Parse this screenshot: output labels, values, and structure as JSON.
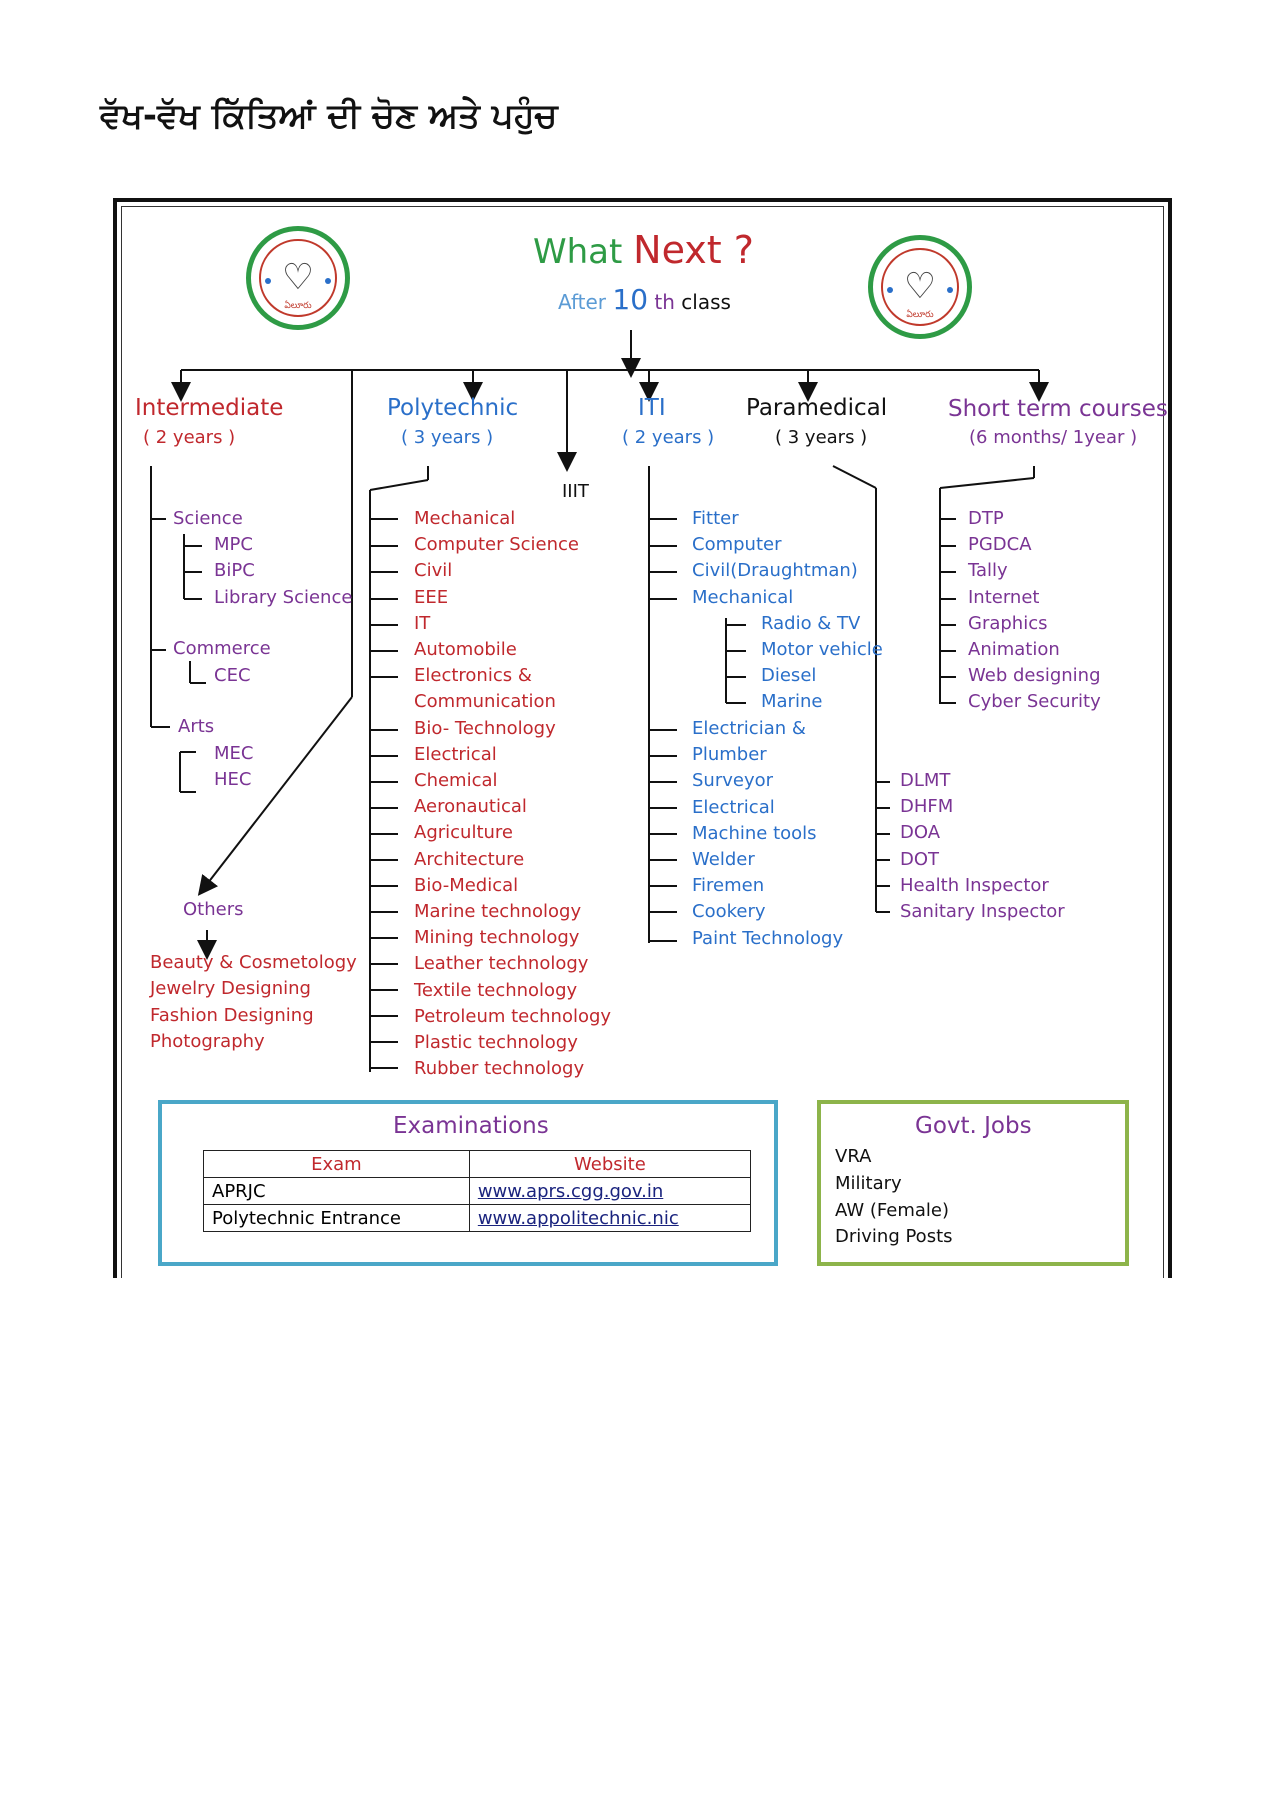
{
  "page_title": "ਵੱਖ-ਵੱਖ ਕਿੱਤਿਆਂ ਦੀ ਚੋਣ ਅਤੇ ਪਹੁੰਚ",
  "header": {
    "what": "What",
    "next": "Next ?",
    "after": "After",
    "ten": "10",
    "th": "th",
    "class": "class",
    "logo_label": "ఏలూరు"
  },
  "intermediate": {
    "title": "Intermediate",
    "duration": "( 2 years )",
    "science": "Science",
    "science_items": [
      "MPC",
      "BiPC",
      "Library Science"
    ],
    "commerce": "Commerce",
    "commerce_items": [
      "CEC"
    ],
    "arts": "Arts",
    "arts_items": [
      "MEC",
      "HEC"
    ]
  },
  "others": {
    "title": "Others",
    "items": [
      "Beauty & Cosmetology",
      "Jewelry Designing",
      "Fashion Designing",
      "Photography"
    ]
  },
  "polytechnic": {
    "title": "Polytechnic",
    "duration": "( 3 years )",
    "items": [
      "Mechanical",
      "Computer Science",
      "Civil",
      "EEE",
      "IT",
      "Automobile",
      "Electronics &",
      "Communication",
      "Bio- Technology",
      "Electrical",
      "Chemical",
      "Aeronautical",
      "Agriculture",
      "Architecture",
      "Bio-Medical",
      "Marine technology",
      "Mining technology",
      "Leather technology",
      "Textile technology",
      "Petroleum technology",
      "Plastic technology",
      "Rubber technology"
    ]
  },
  "iiit": {
    "title": "IIIT"
  },
  "iti": {
    "title": "ITI",
    "duration": "( 2 years )",
    "items": [
      "Fitter",
      "Computer",
      "Civil(Draughtman)",
      "Mechanical"
    ],
    "mechanical_items": [
      "Radio & TV",
      "Motor vehicle",
      "Diesel",
      "Marine"
    ],
    "more_items": [
      "Electrician &",
      "Plumber",
      "Surveyor",
      "Electrical",
      "Machine tools",
      "Welder",
      "Firemen",
      "Cookery",
      "Paint Technology"
    ]
  },
  "paramedical": {
    "title": "Paramedical",
    "duration": "( 3 years )",
    "items": [
      "DLMT",
      "DHFM",
      "DOA",
      "DOT",
      "Health Inspector",
      "Sanitary Inspector"
    ]
  },
  "short_term": {
    "title": "Short term courses",
    "duration": "(6 months/ 1year )",
    "items": [
      "DTP",
      "PGDCA",
      "Tally",
      "Internet",
      "Graphics",
      "Animation",
      "Web designing",
      "Cyber Security"
    ]
  },
  "examinations": {
    "title": "Examinations",
    "headers": [
      "Exam",
      "Website"
    ],
    "rows": [
      [
        "APRJC",
        "www.aprs.cgg.gov.in"
      ],
      [
        "Polytechnic Entrance",
        "www.appolitechnic.nic"
      ]
    ]
  },
  "govt_jobs": {
    "title": "Govt. Jobs",
    "items": [
      "VRA",
      "Military",
      "AW (Female)",
      "Driving Posts"
    ]
  },
  "colors": {
    "red": "#c0282d",
    "green": "#2e9b45",
    "blue": "#2a6fc9",
    "purple": "#7a3494",
    "exam_border": "#4aa7c8",
    "jobs_border": "#8db44a"
  }
}
